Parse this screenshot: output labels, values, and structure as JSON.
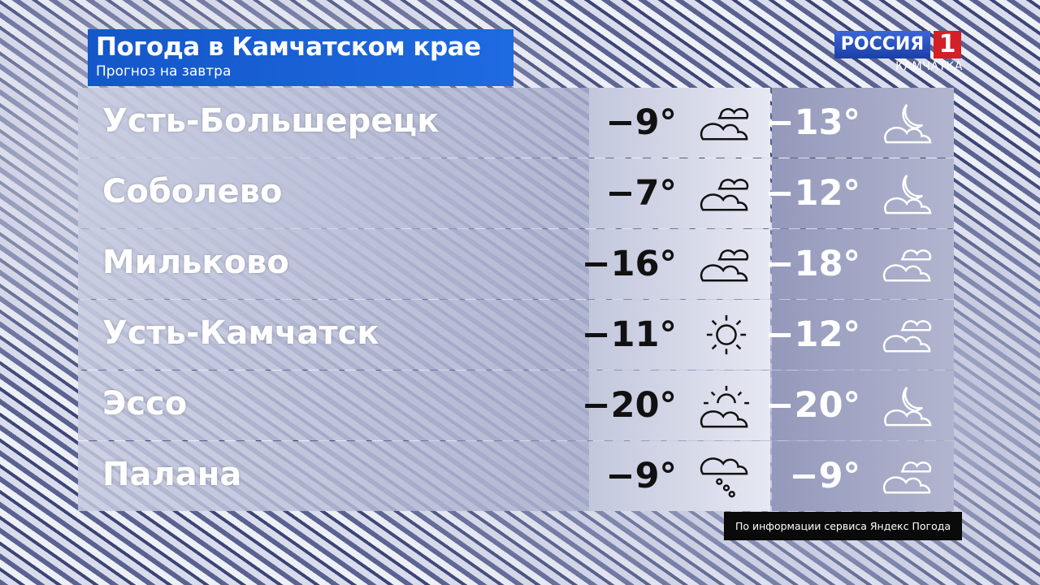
{
  "header": {
    "title": "Погода в Камчатском крае",
    "subtitle": "Прогноз на завтра"
  },
  "logo": {
    "brand": "РОССИЯ",
    "number": "1",
    "region": "КАМЧАТКА",
    "colors": {
      "blue": "#1a3fa8",
      "red": "#d41f26"
    }
  },
  "rows": [
    {
      "city": "Усть-Большерецк",
      "day_temp": "−9°",
      "day_icon": "cloudy-icon",
      "night_temp": "−13°",
      "night_icon": "moon-cloud-icon"
    },
    {
      "city": "Соболево",
      "day_temp": "−7°",
      "day_icon": "cloudy-icon",
      "night_temp": "−12°",
      "night_icon": "moon-cloud-icon"
    },
    {
      "city": "Мильково",
      "day_temp": "−16°",
      "day_icon": "cloudy-icon",
      "night_temp": "−18°",
      "night_icon": "cloudy-icon"
    },
    {
      "city": "Усть-Камчатск",
      "day_temp": "−11°",
      "day_icon": "sun-icon",
      "night_temp": "−12°",
      "night_icon": "cloudy-icon"
    },
    {
      "city": "Эссо",
      "day_temp": "−20°",
      "day_icon": "sun-cloud-icon",
      "night_temp": "−20°",
      "night_icon": "moon-cloud-icon"
    },
    {
      "city": "Палана",
      "day_temp": "−9°",
      "day_icon": "snow-cloud-icon",
      "night_temp": "−9°",
      "night_icon": "cloudy-icon"
    }
  ],
  "source": "По информации сервиса Яндекс Погода"
}
